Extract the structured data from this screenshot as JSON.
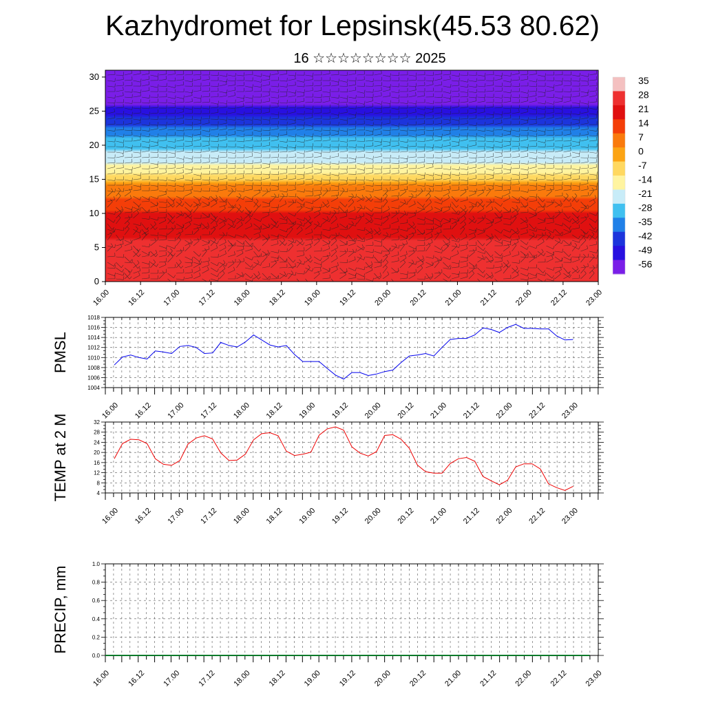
{
  "header": {
    "title": "Kazhydromet for Lepsinsk(45.53 80.62)",
    "subtitle": "16 ☆☆☆☆☆☆☆☆ 2025"
  },
  "time_ticks": [
    "16.00",
    "16.12",
    "17.00",
    "17.12",
    "18.00",
    "18.12",
    "19.00",
    "19.12",
    "20.00",
    "20.12",
    "21.00",
    "21.12",
    "22.00",
    "22.12",
    "23.00"
  ],
  "chart_data": [
    {
      "type": "heatmap",
      "name": "vertical temperature cross-section with wind barbs",
      "x": "time_ticks",
      "ylim": [
        0,
        31
      ],
      "yticks": [
        0,
        5,
        10,
        15,
        20,
        25,
        30
      ],
      "colorbar": {
        "labels": [
          "35",
          "28",
          "21",
          "14",
          "7",
          "0",
          "-7",
          "-14",
          "-21",
          "-28",
          "-35",
          "-42",
          "-49",
          "-56"
        ],
        "colors": [
          "#f4c0c0",
          "#ee3030",
          "#e01010",
          "#f43e08",
          "#fa7a0c",
          "#fca414",
          "#ffd860",
          "#fff4a0",
          "#c8ecf8",
          "#40c0f0",
          "#2080e8",
          "#1c34dc",
          "#2810e0",
          "#7a1ee8"
        ]
      },
      "temperature_levels_by_height": [
        [
          0,
          27
        ],
        [
          3,
          25
        ],
        [
          6,
          22
        ],
        [
          10,
          16
        ],
        [
          14,
          2
        ],
        [
          16,
          -14
        ],
        [
          18,
          -22
        ],
        [
          21,
          -32
        ],
        [
          24,
          -44
        ],
        [
          26,
          -56
        ],
        [
          28,
          -58
        ],
        [
          31,
          -60
        ]
      ]
    },
    {
      "type": "line",
      "ylabel": "PMSL",
      "ylim": [
        1004,
        1018
      ],
      "yticks": [
        1004,
        1006,
        1008,
        1010,
        1012,
        1014,
        1016,
        1018
      ],
      "color": "#0000ee",
      "values": [
        1008.5,
        1010.1,
        1010.5,
        1010.0,
        1009.7,
        1011.3,
        1011.1,
        1010.8,
        1012.2,
        1012.4,
        1012.0,
        1010.8,
        1010.9,
        1013.0,
        1012.4,
        1012.1,
        1013.1,
        1014.5,
        1013.5,
        1012.5,
        1012.1,
        1012.4,
        1010.6,
        1009.2,
        1009.2,
        1009.2,
        1007.8,
        1006.5,
        1005.7,
        1007.0,
        1007.0,
        1006.4,
        1006.7,
        1007.2,
        1007.5,
        1009.0,
        1010.3,
        1010.5,
        1010.8,
        1010.3,
        1012.0,
        1013.6,
        1013.8,
        1013.8,
        1014.5,
        1015.9,
        1015.6,
        1015.0,
        1016.0,
        1016.6,
        1015.8,
        1015.8,
        1015.7,
        1015.7,
        1014.3,
        1013.5,
        1013.6
      ]
    },
    {
      "type": "line",
      "ylabel": "TEMP at 2 M",
      "ylim": [
        4,
        32
      ],
      "yticks": [
        4,
        8,
        12,
        16,
        20,
        24,
        28,
        32
      ],
      "color": "#ee0000",
      "values": [
        17.5,
        23.5,
        25.2,
        25.0,
        23.5,
        17.5,
        15.3,
        14.9,
        16.8,
        23.3,
        25.7,
        26.6,
        25.3,
        19.8,
        16.8,
        17.0,
        19.3,
        25.0,
        27.4,
        27.8,
        26.6,
        20.5,
        18.8,
        19.3,
        20.1,
        26.8,
        29.3,
        30.1,
        28.8,
        22.2,
        19.7,
        18.6,
        20.3,
        26.7,
        27.0,
        25.2,
        21.7,
        15.0,
        12.4,
        11.8,
        11.8,
        15.6,
        17.5,
        18.0,
        16.5,
        10.5,
        8.8,
        7.2,
        9.0,
        14.3,
        15.5,
        15.5,
        13.5,
        7.6,
        6.1,
        5.0,
        6.6
      ]
    },
    {
      "type": "line",
      "ylabel": "PRECIP, mm",
      "ylim": [
        0,
        1
      ],
      "yticks": [
        "0.0",
        "0.2",
        "0.4",
        "0.6",
        "0.8",
        "1.0"
      ],
      "color": "#0a7a2a",
      "values": [
        0,
        0,
        0,
        0,
        0,
        0,
        0,
        0,
        0,
        0,
        0,
        0,
        0,
        0,
        0,
        0,
        0,
        0,
        0,
        0,
        0,
        0,
        0,
        0,
        0,
        0,
        0,
        0,
        0,
        0,
        0,
        0,
        0,
        0,
        0,
        0,
        0,
        0,
        0,
        0,
        0,
        0,
        0,
        0,
        0,
        0,
        0,
        0,
        0,
        0,
        0,
        0,
        0,
        0,
        0,
        0,
        0
      ]
    }
  ]
}
